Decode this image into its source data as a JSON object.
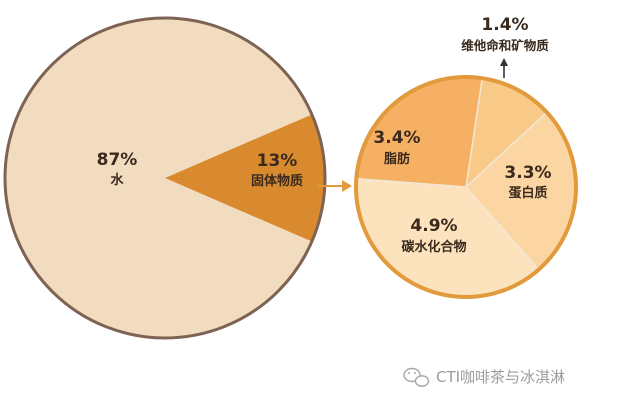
{
  "chart_data": [
    {
      "type": "pie",
      "slices": [
        {
          "label": "水",
          "percent_text": "87%",
          "value": 87,
          "color": "#f1dcc0"
        },
        {
          "label": "固体物质",
          "percent_text": "13%",
          "value": 13,
          "color": "#d98a2e"
        }
      ],
      "border_color": "#7e6353"
    },
    {
      "type": "pie",
      "slices": [
        {
          "label": "维他命和矿物质",
          "percent_text": "1.4%",
          "value": 1.4,
          "color": "#f9c987"
        },
        {
          "label": "蛋白质",
          "percent_text": "3.3%",
          "value": 3.3,
          "color": "#fbd5a2"
        },
        {
          "label": "碳水化合物",
          "percent_text": "4.9%",
          "value": 4.9,
          "color": "#fde3bd"
        },
        {
          "label": "脂肪",
          "percent_text": "3.4%",
          "value": 3.4,
          "color": "#f6b064"
        }
      ],
      "border_color": "#e19a3c"
    }
  ],
  "watermark": {
    "text": "CTI咖啡茶与冰淇淋",
    "icon": "wechat-icon"
  },
  "colors": {
    "arrow": "#e19a3c",
    "callout_arrow": "#333333"
  }
}
